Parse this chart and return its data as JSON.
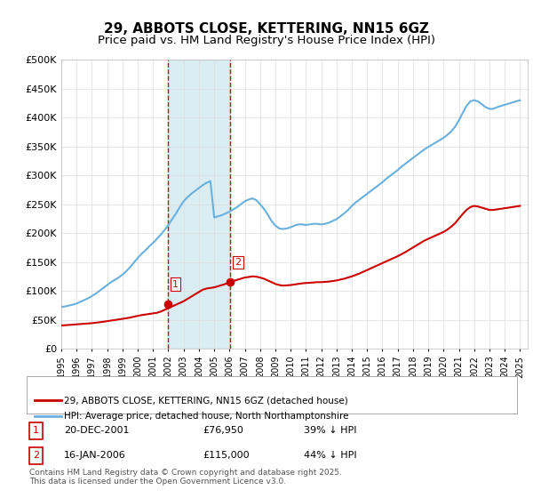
{
  "title": "29, ABBOTS CLOSE, KETTERING, NN15 6GZ",
  "subtitle": "Price paid vs. HM Land Registry's House Price Index (HPI)",
  "ylabel": "",
  "xlabel": "",
  "ylim": [
    0,
    500000
  ],
  "yticks": [
    0,
    50000,
    100000,
    150000,
    200000,
    250000,
    300000,
    350000,
    400000,
    450000,
    500000
  ],
  "ytick_labels": [
    "£0",
    "£50K",
    "£100K",
    "£150K",
    "£200K",
    "£250K",
    "£300K",
    "£350K",
    "£400K",
    "£450K",
    "£500K"
  ],
  "xlim_start": 1995.0,
  "xlim_end": 2025.5,
  "hpi_color": "#6ab0de",
  "price_color": "#cc0000",
  "vline_color": "#cc0000",
  "shade_color": "#add8e6",
  "transaction1_x": 2001.97,
  "transaction1_y": 76950,
  "transaction2_x": 2006.04,
  "transaction2_y": 115000,
  "legend_line1": "29, ABBOTS CLOSE, KETTERING, NN15 6GZ (detached house)",
  "legend_line2": "HPI: Average price, detached house, North Northamptonshire",
  "table_row1_num": "1",
  "table_row1_date": "20-DEC-2001",
  "table_row1_price": "£76,950",
  "table_row1_hpi": "39% ↓ HPI",
  "table_row2_num": "2",
  "table_row2_date": "16-JAN-2006",
  "table_row2_price": "£115,000",
  "table_row2_hpi": "44% ↓ HPI",
  "footer": "Contains HM Land Registry data © Crown copyright and database right 2025.\nThis data is licensed under the Open Government Licence v3.0.",
  "hpi_x": [
    1995.0,
    1995.25,
    1995.5,
    1995.75,
    1996.0,
    1996.25,
    1996.5,
    1996.75,
    1997.0,
    1997.25,
    1997.5,
    1997.75,
    1998.0,
    1998.25,
    1998.5,
    1998.75,
    1999.0,
    1999.25,
    1999.5,
    1999.75,
    2000.0,
    2000.25,
    2000.5,
    2000.75,
    2001.0,
    2001.25,
    2001.5,
    2001.75,
    2002.0,
    2002.25,
    2002.5,
    2002.75,
    2003.0,
    2003.25,
    2003.5,
    2003.75,
    2004.0,
    2004.25,
    2004.5,
    2004.75,
    2005.0,
    2005.25,
    2005.5,
    2005.75,
    2006.0,
    2006.25,
    2006.5,
    2006.75,
    2007.0,
    2007.25,
    2007.5,
    2007.75,
    2008.0,
    2008.25,
    2008.5,
    2008.75,
    2009.0,
    2009.25,
    2009.5,
    2009.75,
    2010.0,
    2010.25,
    2010.5,
    2010.75,
    2011.0,
    2011.25,
    2011.5,
    2011.75,
    2012.0,
    2012.25,
    2012.5,
    2012.75,
    2013.0,
    2013.25,
    2013.5,
    2013.75,
    2014.0,
    2014.25,
    2014.5,
    2014.75,
    2015.0,
    2015.25,
    2015.5,
    2015.75,
    2016.0,
    2016.25,
    2016.5,
    2016.75,
    2017.0,
    2017.25,
    2017.5,
    2017.75,
    2018.0,
    2018.25,
    2018.5,
    2018.75,
    2019.0,
    2019.25,
    2019.5,
    2019.75,
    2020.0,
    2020.25,
    2020.5,
    2020.75,
    2021.0,
    2021.25,
    2021.5,
    2021.75,
    2022.0,
    2022.25,
    2022.5,
    2022.75,
    2023.0,
    2023.25,
    2023.5,
    2023.75,
    2024.0,
    2024.25,
    2024.5,
    2024.75,
    2025.0
  ],
  "hpi_y": [
    72000,
    73000,
    74500,
    76000,
    78000,
    81000,
    84000,
    87000,
    91000,
    95000,
    100000,
    105000,
    110000,
    115000,
    119000,
    123000,
    128000,
    134000,
    141000,
    149000,
    157000,
    164000,
    170000,
    177000,
    183000,
    190000,
    197000,
    205000,
    214000,
    224000,
    234000,
    245000,
    255000,
    262000,
    268000,
    273000,
    278000,
    283000,
    287000,
    290000,
    227000,
    229000,
    231000,
    234000,
    237000,
    241000,
    245000,
    250000,
    255000,
    258000,
    260000,
    257000,
    250000,
    242000,
    232000,
    221000,
    213000,
    208000,
    207000,
    208000,
    210000,
    213000,
    215000,
    215000,
    214000,
    215000,
    216000,
    216000,
    215000,
    216000,
    218000,
    221000,
    224000,
    229000,
    234000,
    240000,
    247000,
    253000,
    258000,
    263000,
    268000,
    273000,
    278000,
    283000,
    288000,
    294000,
    299000,
    304000,
    309000,
    315000,
    320000,
    325000,
    330000,
    335000,
    340000,
    345000,
    349000,
    353000,
    357000,
    361000,
    365000,
    370000,
    376000,
    384000,
    395000,
    408000,
    420000,
    428000,
    430000,
    428000,
    423000,
    418000,
    415000,
    415000,
    418000,
    420000,
    422000,
    424000,
    426000,
    428000,
    430000
  ],
  "price_x": [
    1995.0,
    1995.25,
    1995.5,
    1995.75,
    1996.0,
    1996.25,
    1996.5,
    1996.75,
    1997.0,
    1997.25,
    1997.5,
    1997.75,
    1998.0,
    1998.25,
    1998.5,
    1998.75,
    1999.0,
    1999.25,
    1999.5,
    1999.75,
    2000.0,
    2000.25,
    2000.5,
    2000.75,
    2001.0,
    2001.25,
    2001.5,
    2001.75,
    2002.0,
    2002.25,
    2002.5,
    2002.75,
    2003.0,
    2003.25,
    2003.5,
    2003.75,
    2004.0,
    2004.25,
    2004.5,
    2004.75,
    2005.0,
    2005.25,
    2005.5,
    2005.75,
    2006.0,
    2006.25,
    2006.5,
    2006.75,
    2007.0,
    2007.25,
    2007.5,
    2007.75,
    2008.0,
    2008.25,
    2008.5,
    2008.75,
    2009.0,
    2009.25,
    2009.5,
    2009.75,
    2010.0,
    2010.25,
    2010.5,
    2010.75,
    2011.0,
    2011.25,
    2011.5,
    2011.75,
    2012.0,
    2012.25,
    2012.5,
    2012.75,
    2013.0,
    2013.25,
    2013.5,
    2013.75,
    2014.0,
    2014.25,
    2014.5,
    2014.75,
    2015.0,
    2015.25,
    2015.5,
    2015.75,
    2016.0,
    2016.25,
    2016.5,
    2016.75,
    2017.0,
    2017.25,
    2017.5,
    2017.75,
    2018.0,
    2018.25,
    2018.5,
    2018.75,
    2019.0,
    2019.25,
    2019.5,
    2019.75,
    2020.0,
    2020.25,
    2020.5,
    2020.75,
    2021.0,
    2021.25,
    2021.5,
    2021.75,
    2022.0,
    2022.25,
    2022.5,
    2022.75,
    2023.0,
    2023.25,
    2023.5,
    2023.75,
    2024.0,
    2024.25,
    2024.5,
    2024.75,
    2025.0
  ],
  "price_y": [
    40000,
    40500,
    41000,
    41500,
    42000,
    42500,
    43000,
    43500,
    44000,
    44800,
    45600,
    46500,
    47500,
    48500,
    49500,
    50500,
    51500,
    52500,
    53800,
    55200,
    56700,
    58000,
    59000,
    60000,
    61000,
    62000,
    64000,
    67000,
    70000,
    73000,
    76000,
    79000,
    82000,
    86000,
    90000,
    94000,
    98000,
    102000,
    104000,
    105000,
    106000,
    108000,
    110000,
    112000,
    115000,
    117000,
    119000,
    121000,
    123000,
    124000,
    125000,
    124500,
    123000,
    121000,
    118000,
    115000,
    112000,
    110000,
    109000,
    109500,
    110000,
    111000,
    112000,
    113000,
    113500,
    114000,
    114500,
    115000,
    115000,
    115500,
    116000,
    117000,
    118000,
    119500,
    121000,
    123000,
    125000,
    127500,
    130000,
    133000,
    136000,
    139000,
    142000,
    145000,
    148000,
    151000,
    154000,
    157000,
    160000,
    163500,
    167000,
    171000,
    175000,
    179000,
    183000,
    187000,
    190000,
    193000,
    196000,
    199000,
    202000,
    206000,
    211000,
    217000,
    225000,
    233000,
    240000,
    245000,
    247000,
    246000,
    244000,
    242000,
    240000,
    240000,
    241000,
    242000,
    243000,
    244000,
    245000,
    246000,
    247000
  ],
  "bg_color": "#ffffff",
  "grid_color": "#dddddd",
  "title_fontsize": 11,
  "subtitle_fontsize": 9.5
}
